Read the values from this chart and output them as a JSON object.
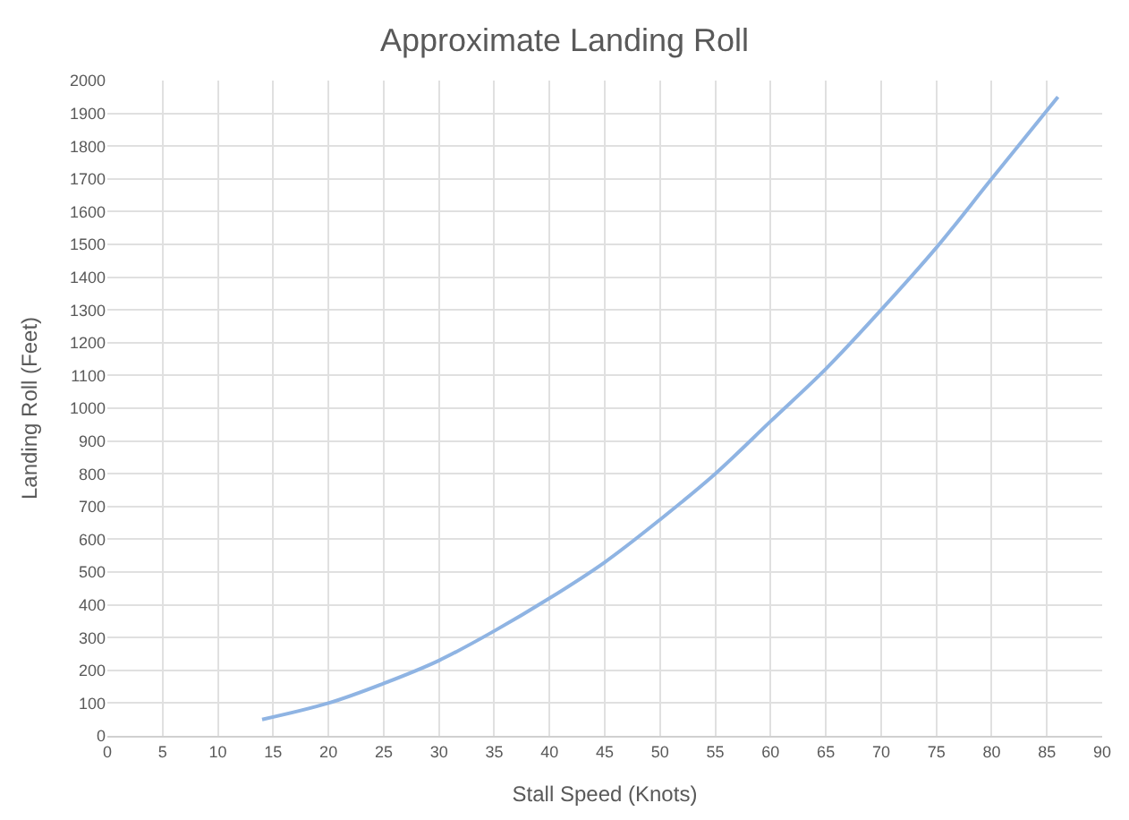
{
  "chart_data": {
    "type": "line",
    "title": "Approximate Landing Roll",
    "xlabel": "Stall Speed (Knots)",
    "ylabel": "Landing Roll (Feet)",
    "x": [
      14,
      20,
      25,
      30,
      35,
      40,
      45,
      50,
      55,
      60,
      65,
      70,
      75,
      80,
      86
    ],
    "series": [
      {
        "color": "#8fb4e3",
        "values": [
          50,
          100,
          160,
          230,
          320,
          420,
          530,
          660,
          800,
          960,
          1120,
          1300,
          1490,
          1700,
          1950
        ]
      }
    ],
    "xlim": [
      0,
      90
    ],
    "xticks": [
      0,
      5,
      10,
      15,
      20,
      25,
      30,
      35,
      40,
      45,
      50,
      55,
      60,
      65,
      70,
      75,
      80,
      85,
      90
    ],
    "ylim": [
      0,
      2000
    ],
    "yticks": [
      0,
      100,
      200,
      300,
      400,
      500,
      600,
      700,
      800,
      900,
      1000,
      1100,
      1200,
      1300,
      1400,
      1500,
      1600,
      1700,
      1800,
      1900,
      2000
    ],
    "grid": true,
    "legend": false,
    "marker": "none",
    "line_style": "solid"
  }
}
